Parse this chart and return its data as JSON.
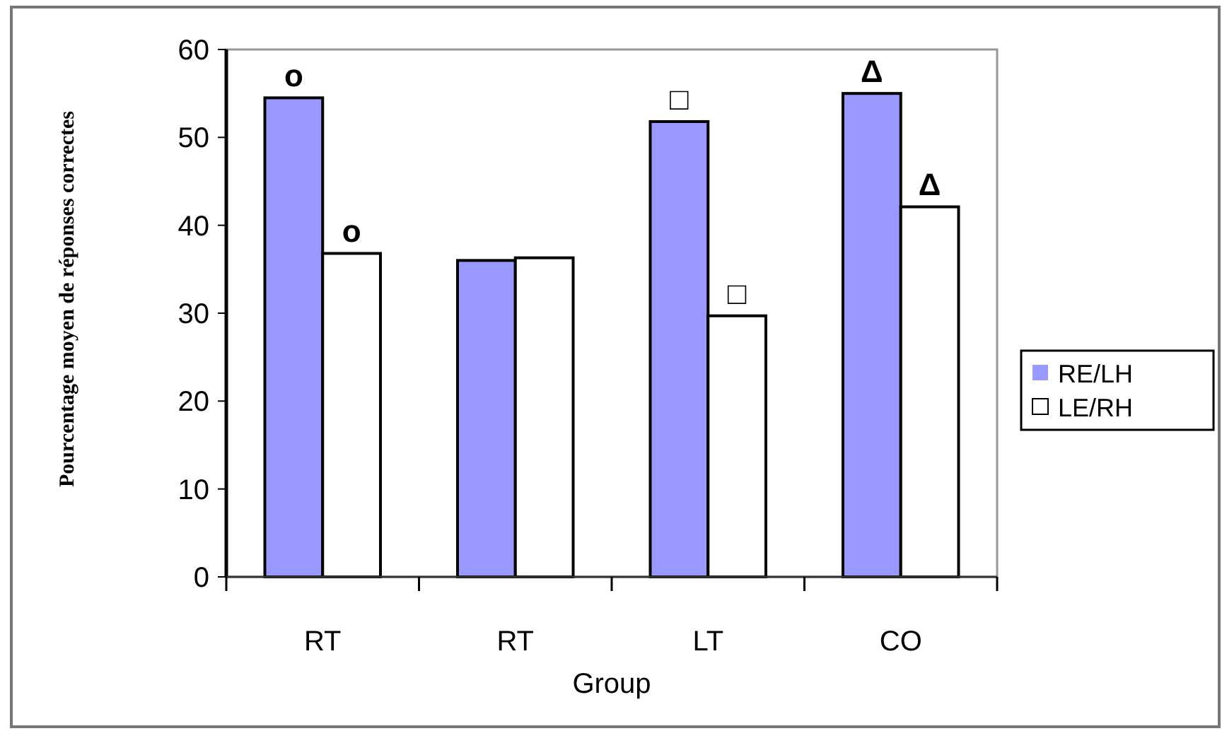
{
  "chart_data": {
    "type": "bar",
    "xlabel": "Group",
    "ylabel": "Pourcentage moyen de réponses correctes",
    "categories": [
      "RT",
      "RT",
      "LT",
      "CO"
    ],
    "series": [
      {
        "name": "RE/LH",
        "color": "#9999ff",
        "values": [
          54.5,
          36,
          51.8,
          55
        ]
      },
      {
        "name": "LE/RH",
        "color": "#ffffff",
        "values": [
          36.8,
          36.3,
          29.7,
          42.1
        ]
      }
    ],
    "ylim": [
      0,
      60
    ],
    "yticks": [
      0,
      10,
      20,
      30,
      40,
      50,
      60
    ],
    "grid": false,
    "legend": "right",
    "annotations": [
      {
        "text": "o",
        "x": "RT",
        "y": 54.5
      },
      {
        "text": "o",
        "x": "RT",
        "y": 36.8
      },
      {
        "text": "□",
        "x": "LT",
        "y": 51.8
      },
      {
        "text": "□",
        "x": "LT",
        "y": 29.7
      },
      {
        "text": "Δ",
        "x": "CO",
        "y": 55
      },
      {
        "text": "Δ",
        "x": "CO",
        "y": 42.1
      }
    ]
  }
}
